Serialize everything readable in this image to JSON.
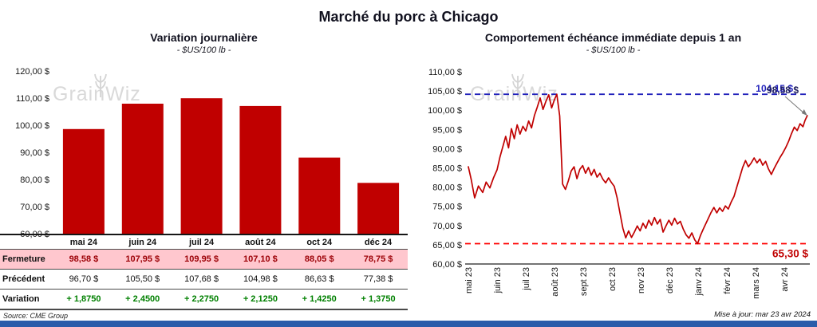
{
  "page": {
    "title": "Marché du porc à Chicago",
    "source_note": "Source: CME Group",
    "update_note": "Mise à jour: mar 23 avr 2024",
    "watermark": "GrainWiz"
  },
  "colors": {
    "bar": "#C00000",
    "line": "#C00000",
    "high_dashed": "#2222BB",
    "low_dashed": "#FF0000",
    "low_label": "#C00000",
    "last_label": "#1F1F5E",
    "closing_row_bg": "#FFC7CE",
    "closing_value_text": "#9C0006",
    "variation_value_text": "#008000",
    "accent_bar": "#2A5CAA",
    "watermark_gray": "#D9D9D9"
  },
  "chart_data": [
    {
      "type": "bar",
      "title": "Variation  journalière",
      "subtitle": "- $US/100 lb -",
      "categories": [
        "mai 24",
        "juin 24",
        "juil 24",
        "août 24",
        "oct 24",
        "déc 24"
      ],
      "values": [
        98.58,
        107.95,
        109.95,
        107.1,
        88.05,
        78.75
      ],
      "ylim": [
        60,
        120
      ],
      "ytick_step": 10,
      "ytick_format": "fr-money",
      "grid": false,
      "bar_color": "#C00000"
    },
    {
      "type": "line",
      "title": "Comportement  échéance immédiate depuis 1 an",
      "subtitle": "- $US/100 lb -",
      "x_tick_labels": [
        "mai 23",
        "juin 23",
        "juil 23",
        "août 23",
        "sept 23",
        "oct 23",
        "nov 23",
        "déc 23",
        "janv 24",
        "févr 24",
        "mars 24",
        "avr 24"
      ],
      "ylim": [
        60,
        110
      ],
      "ytick_step": 5,
      "x_range_months": [
        0,
        11.8
      ],
      "grid": false,
      "line_color": "#C00000",
      "annotations": {
        "high_line": {
          "value": 104.15,
          "label": "104,15 $",
          "color": "#2222BB",
          "style": "dashed"
        },
        "low_line": {
          "value": 65.3,
          "label": "65,30 $",
          "color": "#FF0000",
          "style": "dashed"
        },
        "last_point": {
          "value": 98.58,
          "label": "98,58 $",
          "color": "#1F1F5E"
        }
      },
      "series": [
        {
          "name": "échéance immédiate",
          "points": [
            [
              0.0,
              85.3
            ],
            [
              0.1,
              82.0
            ],
            [
              0.22,
              77.2
            ],
            [
              0.35,
              80.3
            ],
            [
              0.5,
              78.6
            ],
            [
              0.62,
              81.3
            ],
            [
              0.75,
              79.8
            ],
            [
              0.88,
              82.5
            ],
            [
              1.0,
              84.5
            ],
            [
              1.1,
              87.8
            ],
            [
              1.2,
              90.5
            ],
            [
              1.3,
              93.2
            ],
            [
              1.4,
              90.2
            ],
            [
              1.5,
              95.2
            ],
            [
              1.6,
              92.6
            ],
            [
              1.7,
              96.2
            ],
            [
              1.8,
              93.8
            ],
            [
              1.9,
              95.8
            ],
            [
              2.0,
              94.6
            ],
            [
              2.1,
              97.2
            ],
            [
              2.2,
              95.4
            ],
            [
              2.3,
              98.6
            ],
            [
              2.4,
              100.8
            ],
            [
              2.5,
              103.2
            ],
            [
              2.6,
              100.2
            ],
            [
              2.7,
              102.3
            ],
            [
              2.8,
              104.0
            ],
            [
              2.9,
              100.6
            ],
            [
              3.0,
              102.8
            ],
            [
              3.08,
              104.15
            ],
            [
              3.18,
              98.5
            ],
            [
              3.28,
              80.8
            ],
            [
              3.38,
              79.4
            ],
            [
              3.48,
              81.6
            ],
            [
              3.58,
              84.2
            ],
            [
              3.68,
              85.3
            ],
            [
              3.78,
              82.2
            ],
            [
              3.88,
              84.6
            ],
            [
              3.98,
              85.6
            ],
            [
              4.08,
              83.6
            ],
            [
              4.18,
              85.1
            ],
            [
              4.28,
              83.1
            ],
            [
              4.38,
              84.6
            ],
            [
              4.48,
              82.6
            ],
            [
              4.58,
              83.6
            ],
            [
              4.68,
              82.1
            ],
            [
              4.78,
              81.1
            ],
            [
              4.88,
              82.4
            ],
            [
              4.98,
              81.2
            ],
            [
              5.08,
              80.2
            ],
            [
              5.18,
              77.2
            ],
            [
              5.28,
              73.2
            ],
            [
              5.38,
              69.3
            ],
            [
              5.48,
              66.8
            ],
            [
              5.58,
              68.6
            ],
            [
              5.68,
              66.9
            ],
            [
              5.78,
              68.3
            ],
            [
              5.88,
              69.9
            ],
            [
              5.98,
              68.6
            ],
            [
              6.08,
              70.6
            ],
            [
              6.18,
              69.3
            ],
            [
              6.28,
              71.4
            ],
            [
              6.38,
              70.1
            ],
            [
              6.48,
              72.1
            ],
            [
              6.58,
              70.4
            ],
            [
              6.68,
              71.6
            ],
            [
              6.78,
              68.3
            ],
            [
              6.88,
              69.9
            ],
            [
              6.98,
              71.4
            ],
            [
              7.08,
              70.1
            ],
            [
              7.18,
              71.9
            ],
            [
              7.28,
              70.4
            ],
            [
              7.38,
              71.1
            ],
            [
              7.48,
              69.1
            ],
            [
              7.58,
              67.6
            ],
            [
              7.68,
              66.7
            ],
            [
              7.78,
              68.1
            ],
            [
              7.88,
              66.3
            ],
            [
              7.98,
              65.3
            ],
            [
              8.08,
              67.4
            ],
            [
              8.18,
              69.1
            ],
            [
              8.32,
              71.3
            ],
            [
              8.45,
              73.4
            ],
            [
              8.55,
              74.7
            ],
            [
              8.65,
              73.3
            ],
            [
              8.75,
              74.6
            ],
            [
              8.85,
              73.7
            ],
            [
              8.95,
              75.1
            ],
            [
              9.05,
              74.3
            ],
            [
              9.15,
              76.1
            ],
            [
              9.25,
              77.6
            ],
            [
              9.35,
              80.1
            ],
            [
              9.45,
              82.6
            ],
            [
              9.55,
              85.1
            ],
            [
              9.65,
              86.9
            ],
            [
              9.75,
              85.3
            ],
            [
              9.85,
              86.3
            ],
            [
              9.95,
              87.6
            ],
            [
              10.05,
              86.3
            ],
            [
              10.15,
              87.3
            ],
            [
              10.25,
              85.7
            ],
            [
              10.35,
              86.7
            ],
            [
              10.45,
              84.7
            ],
            [
              10.55,
              83.3
            ],
            [
              10.65,
              84.9
            ],
            [
              10.75,
              86.3
            ],
            [
              10.85,
              87.7
            ],
            [
              10.95,
              88.9
            ],
            [
              11.05,
              90.3
            ],
            [
              11.15,
              91.9
            ],
            [
              11.25,
              93.9
            ],
            [
              11.35,
              95.6
            ],
            [
              11.45,
              94.7
            ],
            [
              11.55,
              96.5
            ],
            [
              11.65,
              95.7
            ],
            [
              11.72,
              97.3
            ],
            [
              11.8,
              98.58
            ]
          ]
        }
      ]
    }
  ],
  "table": {
    "column_headers": [
      "mai 24",
      "juin 24",
      "juil 24",
      "août 24",
      "oct 24",
      "déc 24"
    ],
    "rows": [
      {
        "style": "closing",
        "label": "Fermeture",
        "values": [
          "98,58  $",
          "107,95  $",
          "109,95  $",
          "107,10  $",
          "88,05  $",
          "78,75  $"
        ]
      },
      {
        "style": "previous",
        "label": "Précédent",
        "values": [
          "96,70  $",
          "105,50  $",
          "107,68  $",
          "104,98  $",
          "86,63  $",
          "77,38  $"
        ]
      },
      {
        "style": "variation",
        "label": "Variation",
        "values": [
          "+ 1,8750",
          "+ 2,4500",
          "+ 2,2750",
          "+ 2,1250",
          "+ 1,4250",
          "+ 1,3750"
        ]
      }
    ]
  }
}
